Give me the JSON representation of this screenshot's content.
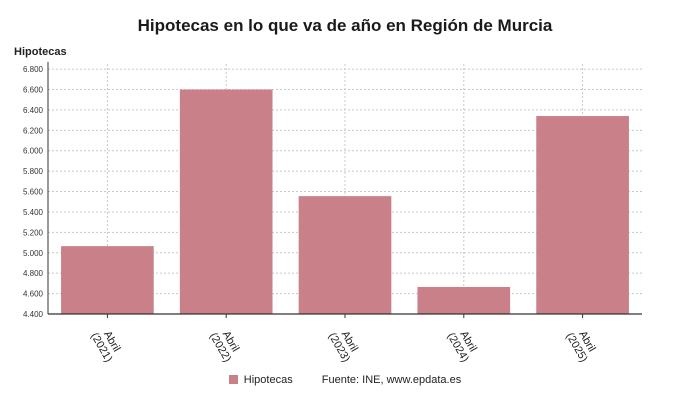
{
  "chart_data": {
    "type": "bar",
    "title": "Hipotecas en lo que va de año en Región de Murcia",
    "ylabel": "Hipotecas",
    "xlabel": "",
    "categories": [
      [
        "Abril",
        "(2021)"
      ],
      [
        "Abril",
        "(2022)"
      ],
      [
        "Abril",
        "(2023)"
      ],
      [
        "Abril",
        "(2024)"
      ],
      [
        "Abril",
        "(2025)"
      ]
    ],
    "series": [
      {
        "name": "Hipotecas",
        "values": [
          5065,
          6600,
          5555,
          4665,
          6340
        ],
        "color": "#c98088"
      }
    ],
    "ylim": [
      4400,
      6850
    ],
    "yticks": [
      "4.400",
      "4.600",
      "4.800",
      "5.000",
      "5.200",
      "5.400",
      "5.600",
      "5.800",
      "6.000",
      "6.200",
      "6.400",
      "6.600",
      "6.800"
    ],
    "ytick_values": [
      4400,
      4600,
      4800,
      5000,
      5200,
      5400,
      5600,
      5800,
      6000,
      6200,
      6400,
      6600,
      6800
    ],
    "grid": true,
    "legend_position": "bottom"
  },
  "legend": {
    "series_label": "Hipotecas"
  },
  "source": {
    "label": "Fuente: INE, www.epdata.es"
  }
}
